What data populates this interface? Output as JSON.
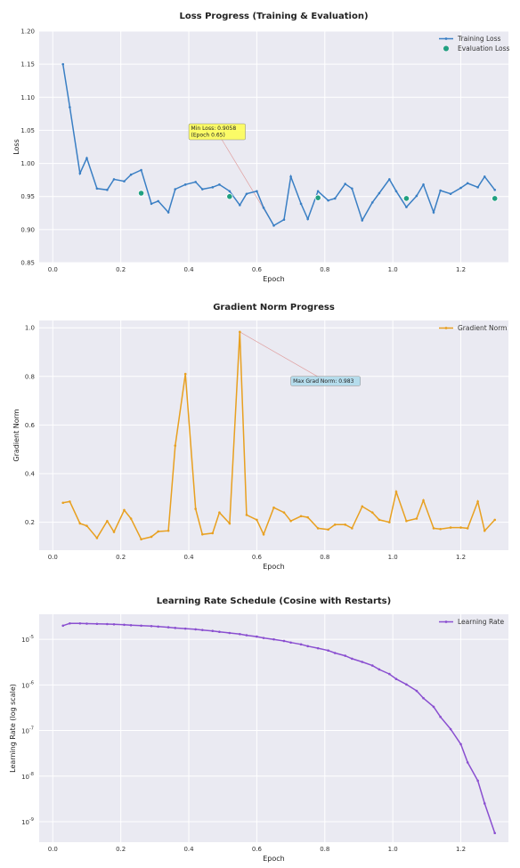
{
  "chart_data": [
    {
      "type": "line",
      "title": "Loss Progress (Training & Evaluation)",
      "xlabel": "Epoch",
      "ylabel": "Loss",
      "xlim": [
        -0.04,
        1.34
      ],
      "ylim": [
        0.85,
        1.2
      ],
      "xticks": [
        0.0,
        0.2,
        0.4,
        0.6,
        0.8,
        1.0,
        1.2
      ],
      "xtick_labels": [
        "0.0",
        "0.2",
        "0.4",
        "0.6",
        "0.8",
        "1.0",
        "1.2"
      ],
      "yticks": [
        0.85,
        0.9,
        0.95,
        1.0,
        1.05,
        1.1,
        1.15,
        1.2
      ],
      "ytick_labels": [
        "0.85",
        "0.90",
        "0.95",
        "1.00",
        "1.05",
        "1.10",
        "1.15",
        "1.20"
      ],
      "grid": true,
      "legend": "top-right",
      "series": [
        {
          "name": "Training Loss",
          "color": "#3a7fc4",
          "marker": "dot",
          "x": [
            0.03,
            0.05,
            0.08,
            0.1,
            0.13,
            0.16,
            0.18,
            0.21,
            0.23,
            0.26,
            0.29,
            0.31,
            0.34,
            0.36,
            0.39,
            0.42,
            0.44,
            0.47,
            0.49,
            0.52,
            0.55,
            0.57,
            0.6,
            0.62,
            0.65,
            0.68,
            0.7,
            0.73,
            0.75,
            0.78,
            0.81,
            0.83,
            0.86,
            0.88,
            0.91,
            0.94,
            0.96,
            0.99,
            1.01,
            1.04,
            1.07,
            1.09,
            1.12,
            1.14,
            1.17,
            1.2,
            1.22,
            1.25,
            1.27,
            1.3
          ],
          "y": [
            1.15,
            1.085,
            0.985,
            1.008,
            0.962,
            0.96,
            0.976,
            0.973,
            0.983,
            0.99,
            0.939,
            0.943,
            0.926,
            0.961,
            0.968,
            0.972,
            0.961,
            0.964,
            0.968,
            0.958,
            0.937,
            0.954,
            0.958,
            0.933,
            0.906,
            0.915,
            0.98,
            0.939,
            0.916,
            0.958,
            0.944,
            0.947,
            0.969,
            0.962,
            0.914,
            0.941,
            0.955,
            0.976,
            0.958,
            0.934,
            0.951,
            0.968,
            0.926,
            0.959,
            0.954,
            0.963,
            0.97,
            0.964,
            0.98,
            0.96
          ]
        },
        {
          "name": "Evaluation Loss",
          "color": "#20a080",
          "marker": "large-dot",
          "line": false,
          "x": [
            0.26,
            0.52,
            0.78,
            1.04,
            1.3
          ],
          "y": [
            0.955,
            0.95,
            0.948,
            0.947,
            0.947
          ]
        }
      ],
      "annotations": [
        {
          "text_lines": [
            "Min Loss: 0.9058",
            "(Epoch 0.65)"
          ],
          "text_x": 0.4,
          "text_y": 1.06,
          "point_x": 0.65,
          "point_y": 0.906,
          "box_color": "#ffff44"
        }
      ]
    },
    {
      "type": "line",
      "title": "Gradient Norm Progress",
      "xlabel": "Epoch",
      "ylabel": "Gradient Norm",
      "xlim": [
        -0.04,
        1.34
      ],
      "ylim": [
        0.085,
        1.03
      ],
      "xticks": [
        0.0,
        0.2,
        0.4,
        0.6,
        0.8,
        1.0,
        1.2
      ],
      "xtick_labels": [
        "0.0",
        "0.2",
        "0.4",
        "0.6",
        "0.8",
        "1.0",
        "1.2"
      ],
      "yticks": [
        0.2,
        0.4,
        0.6,
        0.8,
        1.0
      ],
      "ytick_labels": [
        "0.2",
        "0.4",
        "0.6",
        "0.8",
        "1.0"
      ],
      "grid": true,
      "legend": "top-right",
      "series": [
        {
          "name": "Gradient Norm",
          "color": "#e8a020",
          "marker": "dot",
          "x": [
            0.03,
            0.05,
            0.08,
            0.1,
            0.13,
            0.16,
            0.18,
            0.21,
            0.23,
            0.26,
            0.29,
            0.31,
            0.34,
            0.36,
            0.39,
            0.42,
            0.44,
            0.47,
            0.49,
            0.52,
            0.55,
            0.57,
            0.6,
            0.62,
            0.65,
            0.68,
            0.7,
            0.73,
            0.75,
            0.78,
            0.81,
            0.83,
            0.86,
            0.88,
            0.91,
            0.94,
            0.96,
            0.99,
            1.01,
            1.04,
            1.07,
            1.09,
            1.12,
            1.14,
            1.17,
            1.2,
            1.22,
            1.25,
            1.27,
            1.3
          ],
          "y": [
            0.28,
            0.285,
            0.195,
            0.185,
            0.135,
            0.205,
            0.16,
            0.25,
            0.215,
            0.13,
            0.14,
            0.162,
            0.165,
            0.515,
            0.81,
            0.255,
            0.15,
            0.155,
            0.24,
            0.195,
            0.983,
            0.23,
            0.21,
            0.15,
            0.26,
            0.24,
            0.205,
            0.225,
            0.22,
            0.175,
            0.17,
            0.19,
            0.19,
            0.175,
            0.265,
            0.24,
            0.21,
            0.2,
            0.325,
            0.205,
            0.215,
            0.29,
            0.175,
            0.172,
            0.178,
            0.178,
            0.175,
            0.285,
            0.165,
            0.21
          ]
        }
      ],
      "annotations": [
        {
          "text_lines": [
            "Max Grad Norm: 0.983"
          ],
          "text_x": 0.7,
          "text_y": 0.8,
          "point_x": 0.55,
          "point_y": 0.983,
          "box_color": "#a8d8ea"
        }
      ]
    },
    {
      "type": "line",
      "title": "Learning Rate Schedule (Cosine with Restarts)",
      "xlabel": "Epoch",
      "ylabel": "Learning Rate (log scale)",
      "yscale": "log",
      "xlim": [
        -0.04,
        1.34
      ],
      "ylim_log10": [
        -9.45,
        -4.45
      ],
      "xticks": [
        0.0,
        0.2,
        0.4,
        0.6,
        0.8,
        1.0,
        1.2
      ],
      "xtick_labels": [
        "0.0",
        "0.2",
        "0.4",
        "0.6",
        "0.8",
        "1.0",
        "1.2"
      ],
      "yticks_exp": [
        -9,
        -8,
        -7,
        -6,
        -5
      ],
      "ytick_base": "10",
      "grid": true,
      "legend": "top-right",
      "series": [
        {
          "name": "Learning Rate",
          "color": "#8a4fd0",
          "marker": "dot",
          "x": [
            0.03,
            0.05,
            0.08,
            0.1,
            0.13,
            0.16,
            0.18,
            0.21,
            0.23,
            0.26,
            0.29,
            0.31,
            0.34,
            0.36,
            0.39,
            0.42,
            0.44,
            0.47,
            0.49,
            0.52,
            0.55,
            0.57,
            0.6,
            0.62,
            0.65,
            0.68,
            0.7,
            0.73,
            0.75,
            0.78,
            0.81,
            0.83,
            0.86,
            0.88,
            0.91,
            0.94,
            0.96,
            0.99,
            1.01,
            1.04,
            1.07,
            1.09,
            1.12,
            1.14,
            1.17,
            1.2,
            1.22,
            1.25,
            1.27,
            1.3
          ],
          "y_log10": [
            -4.7,
            -4.65,
            -4.65,
            -4.655,
            -4.66,
            -4.665,
            -4.67,
            -4.68,
            -4.69,
            -4.7,
            -4.71,
            -4.72,
            -4.735,
            -4.75,
            -4.765,
            -4.78,
            -4.795,
            -4.815,
            -4.835,
            -4.86,
            -4.885,
            -4.91,
            -4.94,
            -4.97,
            -5.0,
            -5.035,
            -5.07,
            -5.11,
            -5.15,
            -5.195,
            -5.245,
            -5.3,
            -5.36,
            -5.425,
            -5.495,
            -5.575,
            -5.66,
            -5.76,
            -5.87,
            -5.99,
            -6.13,
            -6.29,
            -6.48,
            -6.7,
            -6.97,
            -7.3,
            -7.7,
            -8.1,
            -8.6,
            -9.25
          ]
        }
      ]
    }
  ]
}
